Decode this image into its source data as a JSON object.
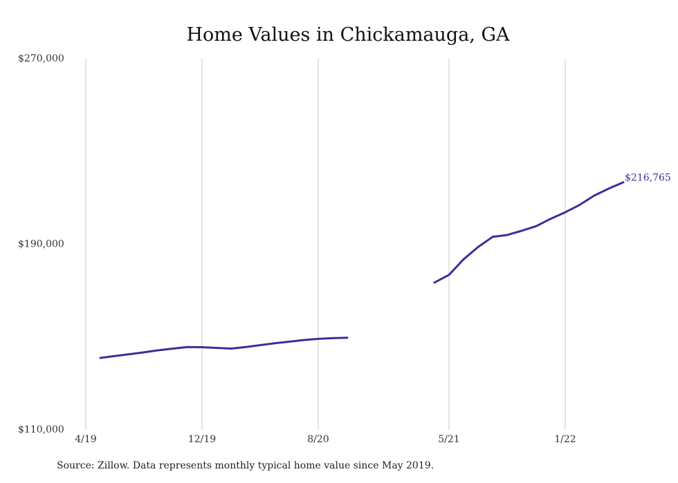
{
  "chart_data": {
    "type": "line",
    "title": "Home Values in Chickamauga, GA",
    "xlabel": "",
    "ylabel": "",
    "ylim": [
      110000,
      270000
    ],
    "y_ticks": [
      "$270,000",
      "$190,000",
      "$110,000"
    ],
    "x_ticks": [
      "4/19",
      "12/19",
      "8/20",
      "5/21",
      "1/22"
    ],
    "x_tick_dates": [
      "2019-04",
      "2019-12",
      "2020-08",
      "2021-05",
      "2022-01"
    ],
    "grid": "vertical",
    "series": [
      {
        "color": "#3a2f9a",
        "points": [
          {
            "x": "2019-05",
            "y": 141000
          },
          {
            "x": "2019-06",
            "y": 141800
          },
          {
            "x": "2019-07",
            "y": 142600
          },
          {
            "x": "2019-08",
            "y": 143400
          },
          {
            "x": "2019-09",
            "y": 144300
          },
          {
            "x": "2019-10",
            "y": 145000
          },
          {
            "x": "2019-11",
            "y": 145700
          },
          {
            "x": "2019-12",
            "y": 145600
          },
          {
            "x": "2020-01",
            "y": 145300
          },
          {
            "x": "2020-02",
            "y": 145000
          },
          {
            "x": "2020-03",
            "y": 145700
          },
          {
            "x": "2020-04",
            "y": 146500
          },
          {
            "x": "2020-05",
            "y": 147300
          },
          {
            "x": "2020-06",
            "y": 148000
          },
          {
            "x": "2020-07",
            "y": 148700
          },
          {
            "x": "2020-08",
            "y": 149200
          },
          {
            "x": "2020-09",
            "y": 149500
          },
          {
            "x": "2020-10",
            "y": 149700
          },
          {
            "x": "2020-11",
            "y": null
          },
          {
            "x": "2020-12",
            "y": null
          },
          {
            "x": "2021-01",
            "y": null
          },
          {
            "x": "2021-02",
            "y": null
          },
          {
            "x": "2021-03",
            "y": null
          },
          {
            "x": "2021-04",
            "y": 173500
          },
          {
            "x": "2021-05",
            "y": 176800
          },
          {
            "x": "2021-06",
            "y": 183500
          },
          {
            "x": "2021-07",
            "y": 188800
          },
          {
            "x": "2021-08",
            "y": 193200
          },
          {
            "x": "2021-09",
            "y": 194000
          },
          {
            "x": "2021-10",
            "y": 195800
          },
          {
            "x": "2021-11",
            "y": 197800
          },
          {
            "x": "2021-12",
            "y": 201000
          },
          {
            "x": "2022-01",
            "y": 203800
          },
          {
            "x": "2022-02",
            "y": 207000
          },
          {
            "x": "2022-03",
            "y": 211000
          },
          {
            "x": "2022-04",
            "y": 214000
          },
          {
            "x": "2022-05",
            "y": 216765
          }
        ]
      }
    ],
    "end_label": "$216,765"
  },
  "footnote": "Source: Zillow. Data represents monthly typical home value since May 2019."
}
